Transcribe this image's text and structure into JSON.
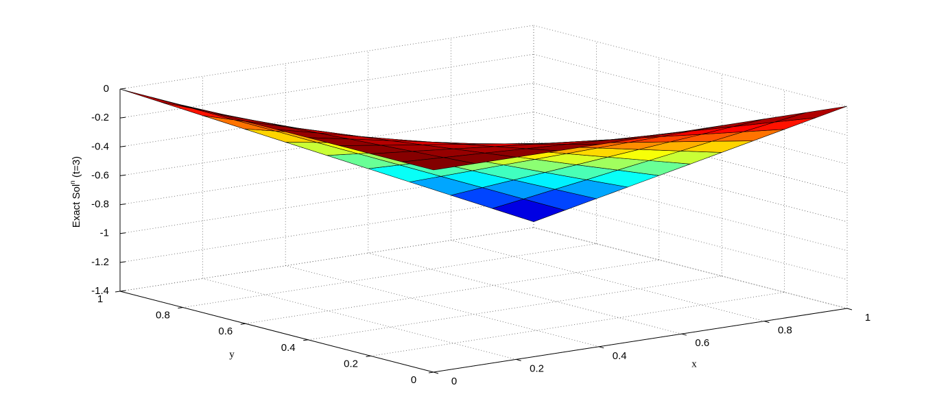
{
  "chart_data": {
    "type": "surface",
    "colormap": "jet",
    "grid": true,
    "xlabel": "x",
    "ylabel": "y",
    "zlabel": {
      "text": "Exact Sol",
      "sup": "n",
      "suffix": " (t=3)"
    },
    "x": [
      0,
      0.1,
      0.2,
      0.3,
      0.4,
      0.5,
      0.6,
      0.7,
      0.8,
      0.9,
      1
    ],
    "y": [
      0,
      0.1,
      0.2,
      0.3,
      0.4,
      0.5,
      0.6,
      0.7,
      0.8,
      0.9,
      1
    ],
    "z": [
      [
        0,
        0,
        0,
        0,
        0,
        0,
        0,
        0,
        0,
        0,
        0
      ],
      [
        0,
        -0.014,
        -0.027,
        -0.041,
        -0.054,
        -0.068,
        -0.082,
        -0.095,
        -0.109,
        -0.122,
        -0.136
      ],
      [
        0,
        -0.027,
        -0.054,
        -0.082,
        -0.109,
        -0.136,
        -0.163,
        -0.19,
        -0.218,
        -0.245,
        -0.272
      ],
      [
        0,
        -0.041,
        -0.082,
        -0.122,
        -0.163,
        -0.204,
        -0.245,
        -0.286,
        -0.326,
        -0.367,
        -0.408
      ],
      [
        0,
        -0.054,
        -0.109,
        -0.163,
        -0.218,
        -0.272,
        -0.326,
        -0.381,
        -0.435,
        -0.49,
        -0.544
      ],
      [
        0,
        -0.068,
        -0.136,
        -0.204,
        -0.272,
        -0.34,
        -0.408,
        -0.476,
        -0.544,
        -0.612,
        -0.68
      ],
      [
        0,
        -0.082,
        -0.163,
        -0.245,
        -0.326,
        -0.408,
        -0.49,
        -0.571,
        -0.653,
        -0.734,
        -0.816
      ],
      [
        0,
        -0.095,
        -0.19,
        -0.286,
        -0.381,
        -0.476,
        -0.571,
        -0.666,
        -0.762,
        -0.857,
        -0.952
      ],
      [
        0,
        -0.109,
        -0.218,
        -0.326,
        -0.435,
        -0.544,
        -0.653,
        -0.762,
        -0.87,
        -0.979,
        -1.088
      ],
      [
        0,
        -0.122,
        -0.245,
        -0.367,
        -0.49,
        -0.612,
        -0.734,
        -0.857,
        -0.979,
        -1.102,
        -1.224
      ],
      [
        0,
        -0.136,
        -0.272,
        -0.408,
        -0.544,
        -0.68,
        -0.816,
        -0.952,
        -1.088,
        -1.224,
        -1.36
      ]
    ],
    "xlim": [
      0,
      1
    ],
    "ylim": [
      0,
      1
    ],
    "zlim": [
      -1.4,
      0
    ],
    "xticks": [
      0,
      0.2,
      0.4,
      0.6,
      0.8,
      1
    ],
    "yticks": [
      0,
      0.2,
      0.4,
      0.6,
      0.8,
      1
    ],
    "zticks": [
      -1.4,
      -1.2,
      -1,
      -0.8,
      -0.6,
      -0.4,
      -0.2,
      0
    ]
  }
}
